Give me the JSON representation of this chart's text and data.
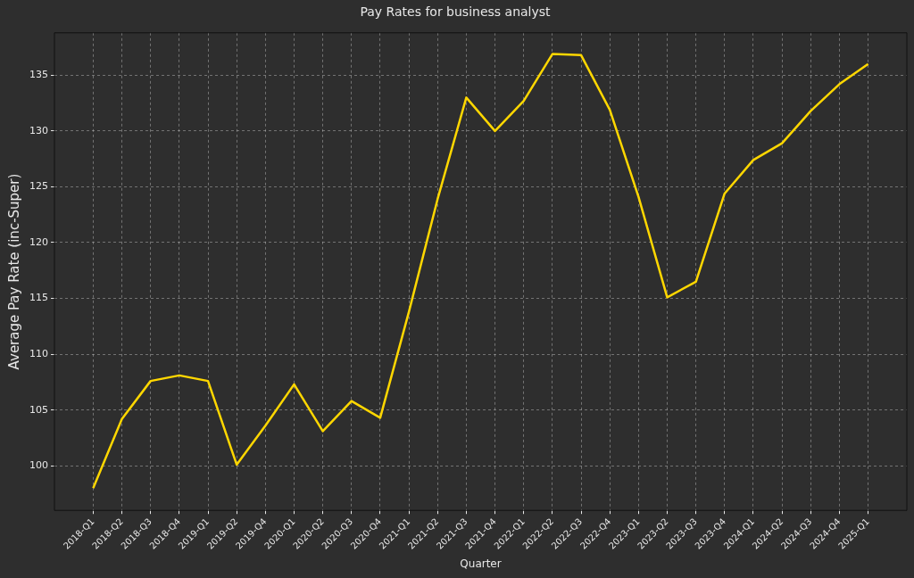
{
  "chart_data": {
    "type": "line",
    "title": "Pay Rates for business analyst",
    "xlabel": "Quarter",
    "ylabel": "Average Pay Rate (inc-Super)",
    "categories": [
      "2018-Q1",
      "2018-Q2",
      "2018-Q3",
      "2018-Q4",
      "2019-Q1",
      "2019-Q2",
      "2019-Q4",
      "2020-Q1",
      "2020-Q2",
      "2020-Q3",
      "2020-Q4",
      "2021-Q1",
      "2021-Q2",
      "2021-Q3",
      "2021-Q4",
      "2022-Q1",
      "2022-Q2",
      "2022-Q3",
      "2022-Q4",
      "2023-Q1",
      "2023-Q2",
      "2023-Q3",
      "2023-Q4",
      "2024-Q1",
      "2024-Q2",
      "2024-Q3",
      "2024-Q4",
      "2025-Q1"
    ],
    "series": [
      {
        "color": "#ffd700",
        "values": [
          98.0,
          104.2,
          107.6,
          108.1,
          107.6,
          100.1,
          103.6,
          107.3,
          103.1,
          105.8,
          104.3,
          113.8,
          123.9,
          133.0,
          130.0,
          132.7,
          136.9,
          136.8,
          131.9,
          124.1,
          115.1,
          116.5,
          124.4,
          127.4,
          128.9,
          131.8,
          134.2,
          136.0
        ]
      }
    ],
    "ylim": [
      96.0,
      138.8
    ],
    "yticks": [
      100,
      105,
      110,
      115,
      120,
      125,
      130,
      135
    ],
    "grid": true,
    "marker": "none",
    "line_style": "solid",
    "legend": false
  }
}
